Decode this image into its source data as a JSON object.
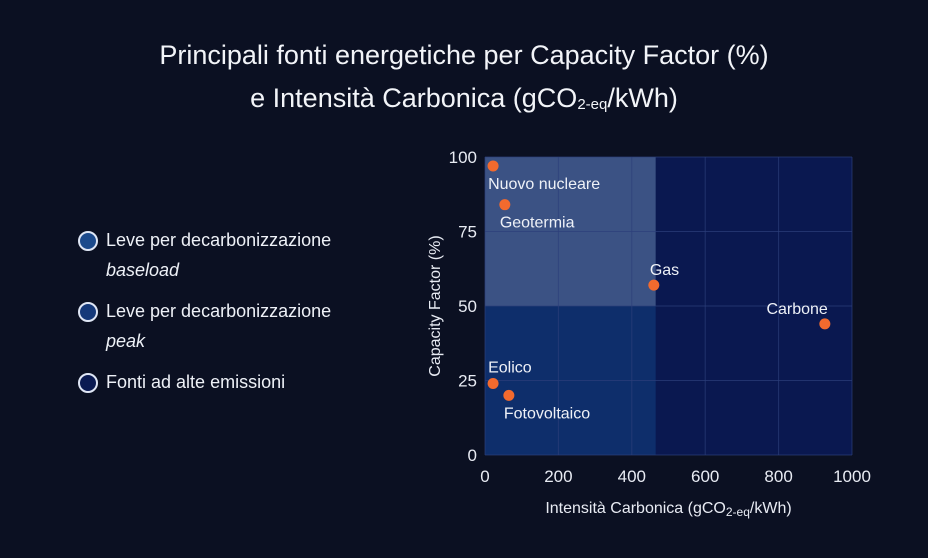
{
  "title": {
    "line1": "Principali fonti energetiche per Capacity Factor (%)",
    "line2_pre": "e Intensità Carbonica (gCO",
    "line2_sub": "2-eq",
    "line2_post": "/kWh)"
  },
  "legend": [
    {
      "label": "Leve per decarbonizzazione",
      "italic": "baseload",
      "color": "#1c4a8c"
    },
    {
      "label": "Leve per decarbonizzazione",
      "italic": "peak",
      "color": "#15397a"
    },
    {
      "label": "Fonti ad alte emissioni",
      "italic": "",
      "color": "#0a1a52"
    }
  ],
  "colors": {
    "background": "#0b1022",
    "plot_bg": "#0a1850",
    "baseload_region": "#3b5284",
    "peak_region": "#0e2e6b",
    "point": "#f26a2e",
    "grid": "#2c3f7a"
  },
  "chart_data": {
    "type": "scatter",
    "title": "Principali fonti energetiche per Capacity Factor (%) e Intensità Carbonica (gCO2-eq/kWh)",
    "xlabel": "Intensità Carbonica (gCO2-eq/kWh)",
    "ylabel": "Capacity Factor (%)",
    "xlim": [
      0,
      1000
    ],
    "ylim": [
      0,
      100
    ],
    "xticks": [
      0,
      200,
      400,
      600,
      800,
      1000
    ],
    "yticks": [
      0,
      25,
      50,
      75,
      100
    ],
    "grid": true,
    "legend_position": "left",
    "regions": [
      {
        "name": "Leve per decarbonizzazione baseload",
        "x": [
          0,
          465
        ],
        "y": [
          50,
          100
        ]
      },
      {
        "name": "Leve per decarbonizzazione peak",
        "x": [
          0,
          465
        ],
        "y": [
          0,
          50
        ]
      },
      {
        "name": "Fonti ad alte emissioni",
        "x": [
          465,
          1000
        ],
        "y": [
          0,
          100
        ]
      }
    ],
    "points": [
      {
        "label": "Nuovo nucleare",
        "x": 22,
        "y": 97
      },
      {
        "label": "Geotermia",
        "x": 54,
        "y": 84
      },
      {
        "label": "Gas",
        "x": 460,
        "y": 57
      },
      {
        "label": "Carbone",
        "x": 926,
        "y": 44
      },
      {
        "label": "Eolico",
        "x": 22,
        "y": 24
      },
      {
        "label": "Fotovoltaico",
        "x": 65,
        "y": 20
      }
    ]
  }
}
